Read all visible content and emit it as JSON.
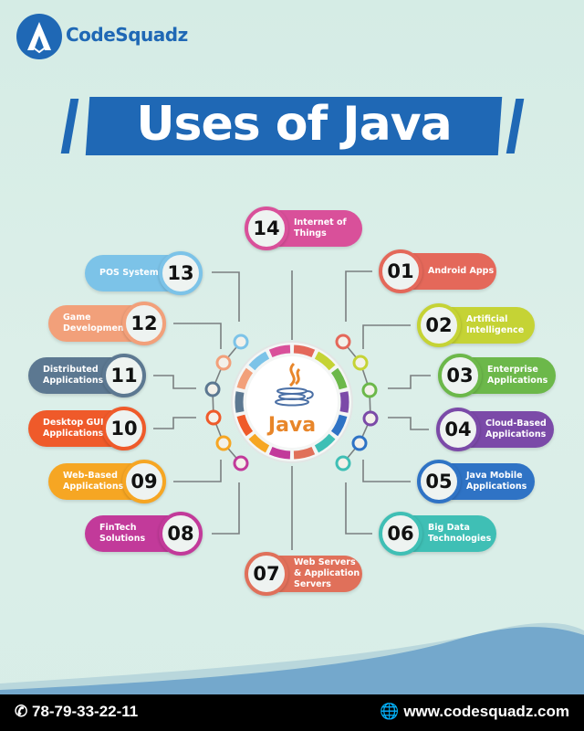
{
  "brand": {
    "name": "CodeSquadz",
    "color": "#1f68b5"
  },
  "title": "Uses of Java",
  "center": {
    "label": "Java",
    "icon": "java-coffee-cup-icon"
  },
  "items": [
    {
      "num": "01",
      "label": "Android Apps",
      "color": "#e4685a",
      "side": "right"
    },
    {
      "num": "02",
      "label": "Artificial Intelligence",
      "color": "#c5d335",
      "side": "right"
    },
    {
      "num": "03",
      "label": "Enterprise Applications",
      "color": "#6cb84a",
      "side": "right"
    },
    {
      "num": "04",
      "label": "Cloud-Based Applications",
      "color": "#7b4aa8",
      "side": "right"
    },
    {
      "num": "05",
      "label": "Java Mobile Applications",
      "color": "#2f73c5",
      "side": "right"
    },
    {
      "num": "06",
      "label": "Big Data Technologies",
      "color": "#3fbfb5",
      "side": "right"
    },
    {
      "num": "07",
      "label": "Web Servers & Application Servers",
      "color": "#e0705a",
      "side": "bottom"
    },
    {
      "num": "08",
      "label": "FinTech Solutions",
      "color": "#c23a9a",
      "side": "left"
    },
    {
      "num": "09",
      "label": "Web-Based Applications",
      "color": "#f6a623",
      "side": "left"
    },
    {
      "num": "10",
      "label": "Desktop GUI Applications",
      "color": "#ef5a2a",
      "side": "left"
    },
    {
      "num": "11",
      "label": "Distributed Applications",
      "color": "#5c7891",
      "side": "left"
    },
    {
      "num": "12",
      "label": "Game Development",
      "color": "#f2a07a",
      "side": "left"
    },
    {
      "num": "13",
      "label": "POS Systems",
      "color": "#7cc3e8",
      "side": "left"
    },
    {
      "num": "14",
      "label": "Internet of Things",
      "color": "#d9509a",
      "side": "top"
    }
  ],
  "footer": {
    "phone": "78-79-33-22-11",
    "phone_icon": "phone-icon",
    "website": "www.codesquadz.com",
    "website_icon": "globe-icon"
  }
}
